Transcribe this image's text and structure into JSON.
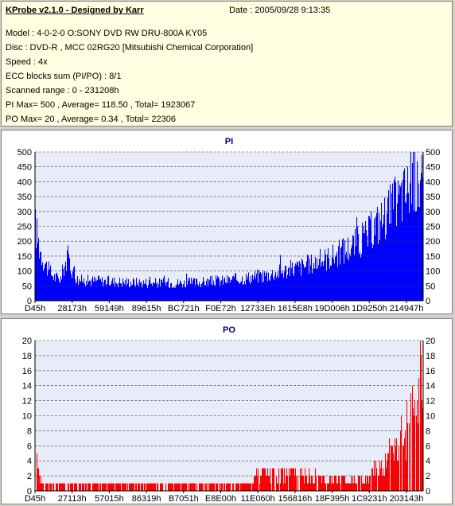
{
  "info": {
    "title": "KProbe v2.1.0 - Designed by Karr",
    "date": "Date : 2005/09/28 9:13:35",
    "model": "Model : 4-0-2-0 O:SONY    DVD RW DRU-800A  KY05",
    "disc": "Disc : DVD-R , MCC 02RG20  [Mitsubishi Chemical Corporation]",
    "speed": "Speed : 4x",
    "ecc": "ECC blocks sum (PI/PO) : 8/1",
    "range": "Scanned range : 0 - 231208h",
    "pi_summary": "PI Max= 500 , Average= 118.50 , Total= 1923067",
    "po_summary": "PO Max= 20 , Average= 0.34 , Total= 22306"
  },
  "colors": {
    "pi": "#0000ff",
    "po": "#ff0000",
    "title": "#000080",
    "plot_bg": "#e8ecf8"
  },
  "chart_data": [
    {
      "type": "bar",
      "title": "PI",
      "ylim": [
        0,
        500
      ],
      "yticks": [
        0,
        50,
        100,
        150,
        200,
        250,
        300,
        350,
        400,
        450,
        500
      ],
      "xticks": [
        "D45h",
        "28173h",
        "59149h",
        "89615h",
        "BC721h",
        "F0E72h",
        "12733Eh",
        "1615E8h",
        "19D006h",
        "1D9250h",
        "214947h"
      ],
      "grid": true,
      "profile": [
        [
          0,
          270
        ],
        [
          0.01,
          200
        ],
        [
          0.02,
          150
        ],
        [
          0.035,
          110
        ],
        [
          0.05,
          85
        ],
        [
          0.065,
          80
        ],
        [
          0.075,
          130
        ],
        [
          0.085,
          160
        ],
        [
          0.095,
          110
        ],
        [
          0.11,
          75
        ],
        [
          0.2,
          70
        ],
        [
          0.3,
          65
        ],
        [
          0.4,
          65
        ],
        [
          0.5,
          75
        ],
        [
          0.6,
          95
        ],
        [
          0.7,
          130
        ],
        [
          0.78,
          170
        ],
        [
          0.85,
          230
        ],
        [
          0.9,
          310
        ],
        [
          0.95,
          390
        ],
        [
          0.98,
          440
        ],
        [
          1.0,
          420
        ]
      ],
      "max": 500
    },
    {
      "type": "bar",
      "title": "PO",
      "ylim": [
        0,
        20
      ],
      "yticks": [
        0,
        2,
        4,
        6,
        8,
        10,
        12,
        14,
        16,
        18,
        20
      ],
      "xticks": [
        "D45h",
        "27113h",
        "57015h",
        "86319h",
        "B7051h",
        "E8E00h",
        "11E060h",
        "156816h",
        "18F395h",
        "1C9231h",
        "203143h"
      ],
      "grid": true,
      "profile": [
        [
          0,
          5
        ],
        [
          0.01,
          3
        ],
        [
          0.02,
          1
        ],
        [
          0.56,
          1
        ],
        [
          0.57,
          3
        ],
        [
          0.76,
          2
        ],
        [
          0.86,
          2
        ],
        [
          0.87,
          3
        ],
        [
          0.9,
          4
        ],
        [
          0.93,
          7
        ],
        [
          0.96,
          10
        ],
        [
          0.98,
          14
        ],
        [
          1.0,
          18
        ]
      ],
      "max": 20
    }
  ]
}
